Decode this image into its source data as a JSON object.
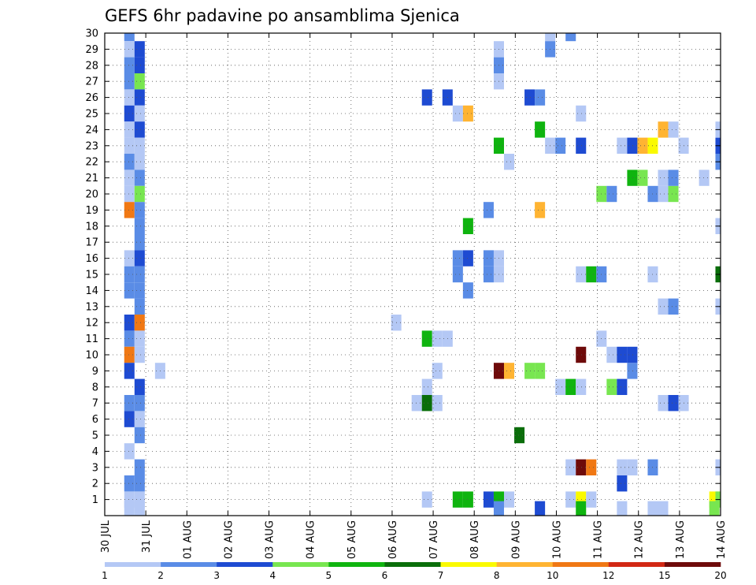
{
  "chart_data": {
    "type": "heatmap",
    "title": "GEFS 6hr padavine po ansamblima Sjenica",
    "xlabel": "",
    "ylabel": "",
    "x_tick_labels": [
      "30 JUL",
      "31 JUL",
      "01 AUG",
      "02 AUG",
      "03 AUG",
      "04 AUG",
      "05 AUG",
      "06 AUG",
      "07 AUG",
      "08 AUG",
      "09 AUG",
      "10 AUG",
      "11 AUG",
      "12 AUG",
      "13 AUG",
      "14 AUG"
    ],
    "y_tick_labels": [
      "1",
      "2",
      "3",
      "4",
      "5",
      "6",
      "7",
      "8",
      "9",
      "10",
      "11",
      "12",
      "13",
      "14",
      "15",
      "16",
      "17",
      "18",
      "19",
      "20",
      "21",
      "22",
      "23",
      "24",
      "25",
      "26",
      "27",
      "28",
      "29",
      "30"
    ],
    "xlim": [
      0,
      15
    ],
    "ylim": [
      0,
      30
    ],
    "grid": true,
    "colorbar": {
      "levels": [
        "1",
        "2",
        "3",
        "4",
        "5",
        "6",
        "7",
        "8",
        "10",
        "12",
        "15",
        "20"
      ],
      "colors": [
        "#b4c8f5",
        "#5a8ce6",
        "#1e4bd2",
        "#78e650",
        "#0fb40f",
        "#0a6e0a",
        "#fafa00",
        "#ffb432",
        "#f07814",
        "#d22814",
        "#6e0a0a"
      ]
    },
    "cells": [
      [
        0.6,
        30,
        2
      ],
      [
        0.6,
        29,
        1
      ],
      [
        0.6,
        28,
        2
      ],
      [
        0.6,
        27,
        2
      ],
      [
        0.6,
        26,
        1
      ],
      [
        0.6,
        25,
        3
      ],
      [
        0.6,
        24,
        1
      ],
      [
        0.6,
        23,
        1
      ],
      [
        0.6,
        22,
        2
      ],
      [
        0.6,
        21,
        1
      ],
      [
        0.6,
        20,
        1
      ],
      [
        0.6,
        19,
        9
      ],
      [
        0.6,
        16,
        1
      ],
      [
        0.6,
        15,
        2
      ],
      [
        0.6,
        14,
        2
      ],
      [
        0.6,
        12,
        3
      ],
      [
        0.6,
        11,
        2
      ],
      [
        0.6,
        10,
        9
      ],
      [
        0.6,
        9,
        3
      ],
      [
        0.6,
        7,
        2
      ],
      [
        0.6,
        6,
        3
      ],
      [
        0.6,
        4,
        1
      ],
      [
        0.6,
        2,
        2
      ],
      [
        0.6,
        1,
        1
      ],
      [
        0.6,
        0.4,
        1
      ],
      [
        0.85,
        29,
        3
      ],
      [
        0.85,
        28,
        3
      ],
      [
        0.85,
        27,
        4
      ],
      [
        0.85,
        26,
        3
      ],
      [
        0.85,
        25,
        1
      ],
      [
        0.85,
        24,
        3
      ],
      [
        0.85,
        23,
        1
      ],
      [
        0.85,
        22,
        1
      ],
      [
        0.85,
        21,
        2
      ],
      [
        0.85,
        20,
        4
      ],
      [
        0.85,
        19,
        2
      ],
      [
        0.85,
        18,
        2
      ],
      [
        0.85,
        17,
        2
      ],
      [
        0.85,
        16,
        3
      ],
      [
        0.85,
        15,
        2
      ],
      [
        0.85,
        14,
        2
      ],
      [
        0.85,
        13,
        2
      ],
      [
        0.85,
        12,
        9
      ],
      [
        0.85,
        11,
        1
      ],
      [
        0.85,
        10,
        1
      ],
      [
        0.85,
        8,
        3
      ],
      [
        0.85,
        7,
        2
      ],
      [
        0.85,
        6,
        1
      ],
      [
        0.85,
        5,
        2
      ],
      [
        0.85,
        3,
        2
      ],
      [
        0.85,
        2,
        2
      ],
      [
        0.85,
        1,
        1
      ],
      [
        0.85,
        0.4,
        1
      ],
      [
        1.35,
        9,
        1
      ],
      [
        7.1,
        12,
        1
      ],
      [
        7.6,
        7,
        1
      ],
      [
        7.85,
        1,
        1
      ],
      [
        7.85,
        7,
        6
      ],
      [
        7.85,
        8,
        1
      ],
      [
        7.85,
        11,
        5
      ],
      [
        7.85,
        26,
        3
      ],
      [
        8.1,
        7,
        1
      ],
      [
        8.1,
        9,
        1
      ],
      [
        8.1,
        11,
        1
      ],
      [
        8.35,
        11,
        1
      ],
      [
        8.35,
        26,
        3
      ],
      [
        8.6,
        1,
        5
      ],
      [
        8.6,
        16,
        2
      ],
      [
        8.6,
        25,
        1
      ],
      [
        8.6,
        15,
        2
      ],
      [
        8.85,
        1,
        5
      ],
      [
        8.85,
        14,
        2
      ],
      [
        8.85,
        16,
        3
      ],
      [
        8.85,
        18,
        5
      ],
      [
        8.85,
        25,
        8
      ],
      [
        9.35,
        1,
        3
      ],
      [
        9.35,
        16,
        2
      ],
      [
        9.35,
        15,
        2
      ],
      [
        9.35,
        19,
        2
      ],
      [
        9.6,
        16,
        1
      ],
      [
        9.6,
        15,
        1
      ],
      [
        9.6,
        23,
        5
      ],
      [
        9.6,
        28,
        2
      ],
      [
        9.6,
        29,
        1
      ],
      [
        9.6,
        9,
        11
      ],
      [
        9.6,
        1,
        5
      ],
      [
        9.6,
        0.4,
        2
      ],
      [
        9.6,
        27,
        1
      ],
      [
        9.85,
        1,
        1
      ],
      [
        9.85,
        9,
        8
      ],
      [
        9.85,
        22,
        1
      ],
      [
        10.1,
        5,
        6
      ],
      [
        10.35,
        9,
        4
      ],
      [
        10.35,
        26,
        3
      ],
      [
        10.6,
        9,
        4
      ],
      [
        10.6,
        19,
        8
      ],
      [
        10.6,
        26,
        2
      ],
      [
        10.6,
        24,
        5
      ],
      [
        10.6,
        0.4,
        3
      ],
      [
        10.85,
        23,
        1
      ],
      [
        10.85,
        30,
        1
      ],
      [
        10.85,
        29,
        2
      ],
      [
        11.1,
        8,
        1
      ],
      [
        11.1,
        23,
        2
      ],
      [
        11.35,
        1,
        1
      ],
      [
        11.35,
        3,
        1
      ],
      [
        11.35,
        8,
        5
      ],
      [
        11.35,
        30,
        2
      ],
      [
        11.6,
        1,
        7
      ],
      [
        11.6,
        3,
        11
      ],
      [
        11.6,
        8,
        1
      ],
      [
        11.6,
        10,
        11
      ],
      [
        11.6,
        15,
        1
      ],
      [
        11.6,
        23,
        3
      ],
      [
        11.6,
        25,
        1
      ],
      [
        11.6,
        0.4,
        5
      ],
      [
        11.85,
        1,
        1
      ],
      [
        11.85,
        3,
        9
      ],
      [
        11.85,
        15,
        5
      ],
      [
        12.1,
        15,
        2
      ],
      [
        12.1,
        11,
        1
      ],
      [
        12.1,
        20,
        4
      ],
      [
        12.35,
        8,
        4
      ],
      [
        12.35,
        10,
        1
      ],
      [
        12.35,
        20,
        2
      ],
      [
        12.6,
        2,
        3
      ],
      [
        12.6,
        3,
        1
      ],
      [
        12.6,
        8,
        3
      ],
      [
        12.6,
        10,
        3
      ],
      [
        12.6,
        23,
        1
      ],
      [
        12.6,
        0.4,
        1
      ],
      [
        12.85,
        3,
        1
      ],
      [
        12.85,
        9,
        2
      ],
      [
        12.85,
        10,
        3
      ],
      [
        12.85,
        21,
        5
      ],
      [
        12.85,
        23,
        3
      ],
      [
        13.1,
        21,
        4
      ],
      [
        13.1,
        23,
        8
      ],
      [
        13.35,
        3,
        2
      ],
      [
        13.35,
        15,
        1
      ],
      [
        13.35,
        20,
        2
      ],
      [
        13.35,
        23,
        7
      ],
      [
        13.35,
        0.4,
        1
      ],
      [
        13.6,
        7,
        1
      ],
      [
        13.6,
        13,
        1
      ],
      [
        13.6,
        20,
        1
      ],
      [
        13.6,
        21,
        1
      ],
      [
        13.6,
        24,
        8
      ],
      [
        13.6,
        0.4,
        1
      ],
      [
        13.85,
        7,
        3
      ],
      [
        13.85,
        13,
        2
      ],
      [
        13.85,
        20,
        4
      ],
      [
        13.85,
        21,
        2
      ],
      [
        13.85,
        24,
        1
      ],
      [
        14.1,
        7,
        1
      ],
      [
        14.1,
        23,
        1
      ],
      [
        14.6,
        21,
        1
      ],
      [
        14.85,
        1,
        7
      ],
      [
        14.85,
        0.4,
        4
      ],
      [
        15,
        1,
        4
      ],
      [
        15,
        3,
        1
      ],
      [
        15,
        13,
        1
      ],
      [
        15,
        15,
        6
      ],
      [
        15,
        18,
        1
      ],
      [
        15,
        22,
        2
      ],
      [
        15,
        23,
        3
      ],
      [
        15,
        24,
        1
      ]
    ]
  }
}
